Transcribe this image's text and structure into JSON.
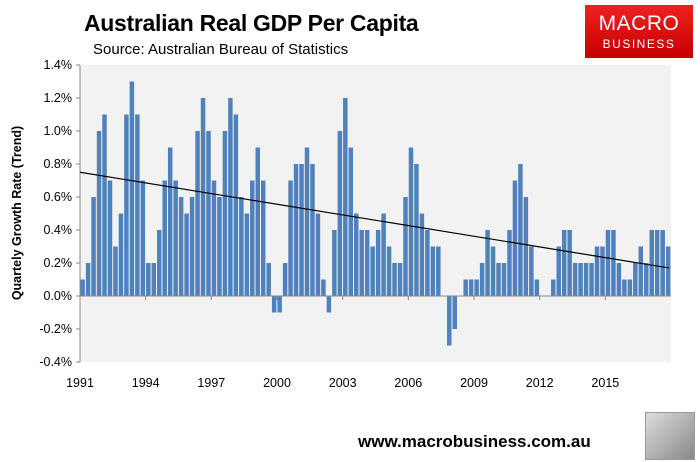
{
  "header": {
    "title": "Australian Real GDP Per Capita",
    "subtitle": "Source: Australian Bureau of Statistics"
  },
  "logo": {
    "line1": "MACRO",
    "line2": "BUSINESS"
  },
  "footer": {
    "url": "www.macrobusiness.com.au"
  },
  "colors": {
    "bar": "#4f81bd",
    "plot_bg": "#f2f2f2",
    "trend": "#000000",
    "logo_red": "#e01010"
  },
  "chart_data": {
    "type": "bar",
    "title": "Australian Real GDP Per Capita",
    "ylabel": "Quartely Growth Rate (Trend)",
    "xlabel": "",
    "ylim": [
      -0.4,
      1.4
    ],
    "y_ticks": [
      "1.4%",
      "1.2%",
      "1.0%",
      "0.8%",
      "0.6%",
      "0.4%",
      "0.2%",
      "0.0%",
      "-0.2%",
      "-0.4%"
    ],
    "x_ticks": [
      "1991",
      "1994",
      "1997",
      "2000",
      "2003",
      "2006",
      "2009",
      "2012",
      "2015"
    ],
    "x_start": "1991 Q1",
    "frequency": "quarterly",
    "values": [
      0.1,
      0.2,
      0.6,
      1.0,
      1.1,
      0.7,
      0.3,
      0.5,
      1.1,
      1.3,
      1.1,
      0.7,
      0.2,
      0.2,
      0.4,
      0.7,
      0.9,
      0.7,
      0.6,
      0.5,
      0.6,
      1.0,
      1.2,
      1.0,
      0.7,
      0.6,
      1.0,
      1.2,
      1.1,
      0.6,
      0.5,
      0.7,
      0.9,
      0.7,
      0.2,
      -0.1,
      -0.1,
      0.2,
      0.7,
      0.8,
      0.8,
      0.9,
      0.8,
      0.5,
      0.1,
      -0.1,
      0.4,
      1.0,
      1.2,
      0.9,
      0.5,
      0.4,
      0.4,
      0.3,
      0.4,
      0.5,
      0.3,
      0.2,
      0.2,
      0.6,
      0.9,
      0.8,
      0.5,
      0.4,
      0.3,
      0.3,
      0,
      -0.3,
      -0.2,
      0,
      0.1,
      0.1,
      0.1,
      0.2,
      0.4,
      0.3,
      0.2,
      0.2,
      0.4,
      0.7,
      0.8,
      0.6,
      0.3,
      0.1,
      0,
      0,
      0.1,
      0.3,
      0.4,
      0.4,
      0.2,
      0.2,
      0.2,
      0.2,
      0.3,
      0.3,
      0.4,
      0.4,
      0.2,
      0.1,
      0.1,
      0.2,
      0.3,
      0.2,
      0.4,
      0.4,
      0.4,
      0.3
    ],
    "trendline": {
      "start": 0.75,
      "end": 0.17
    },
    "grid": false,
    "legend": "none"
  }
}
